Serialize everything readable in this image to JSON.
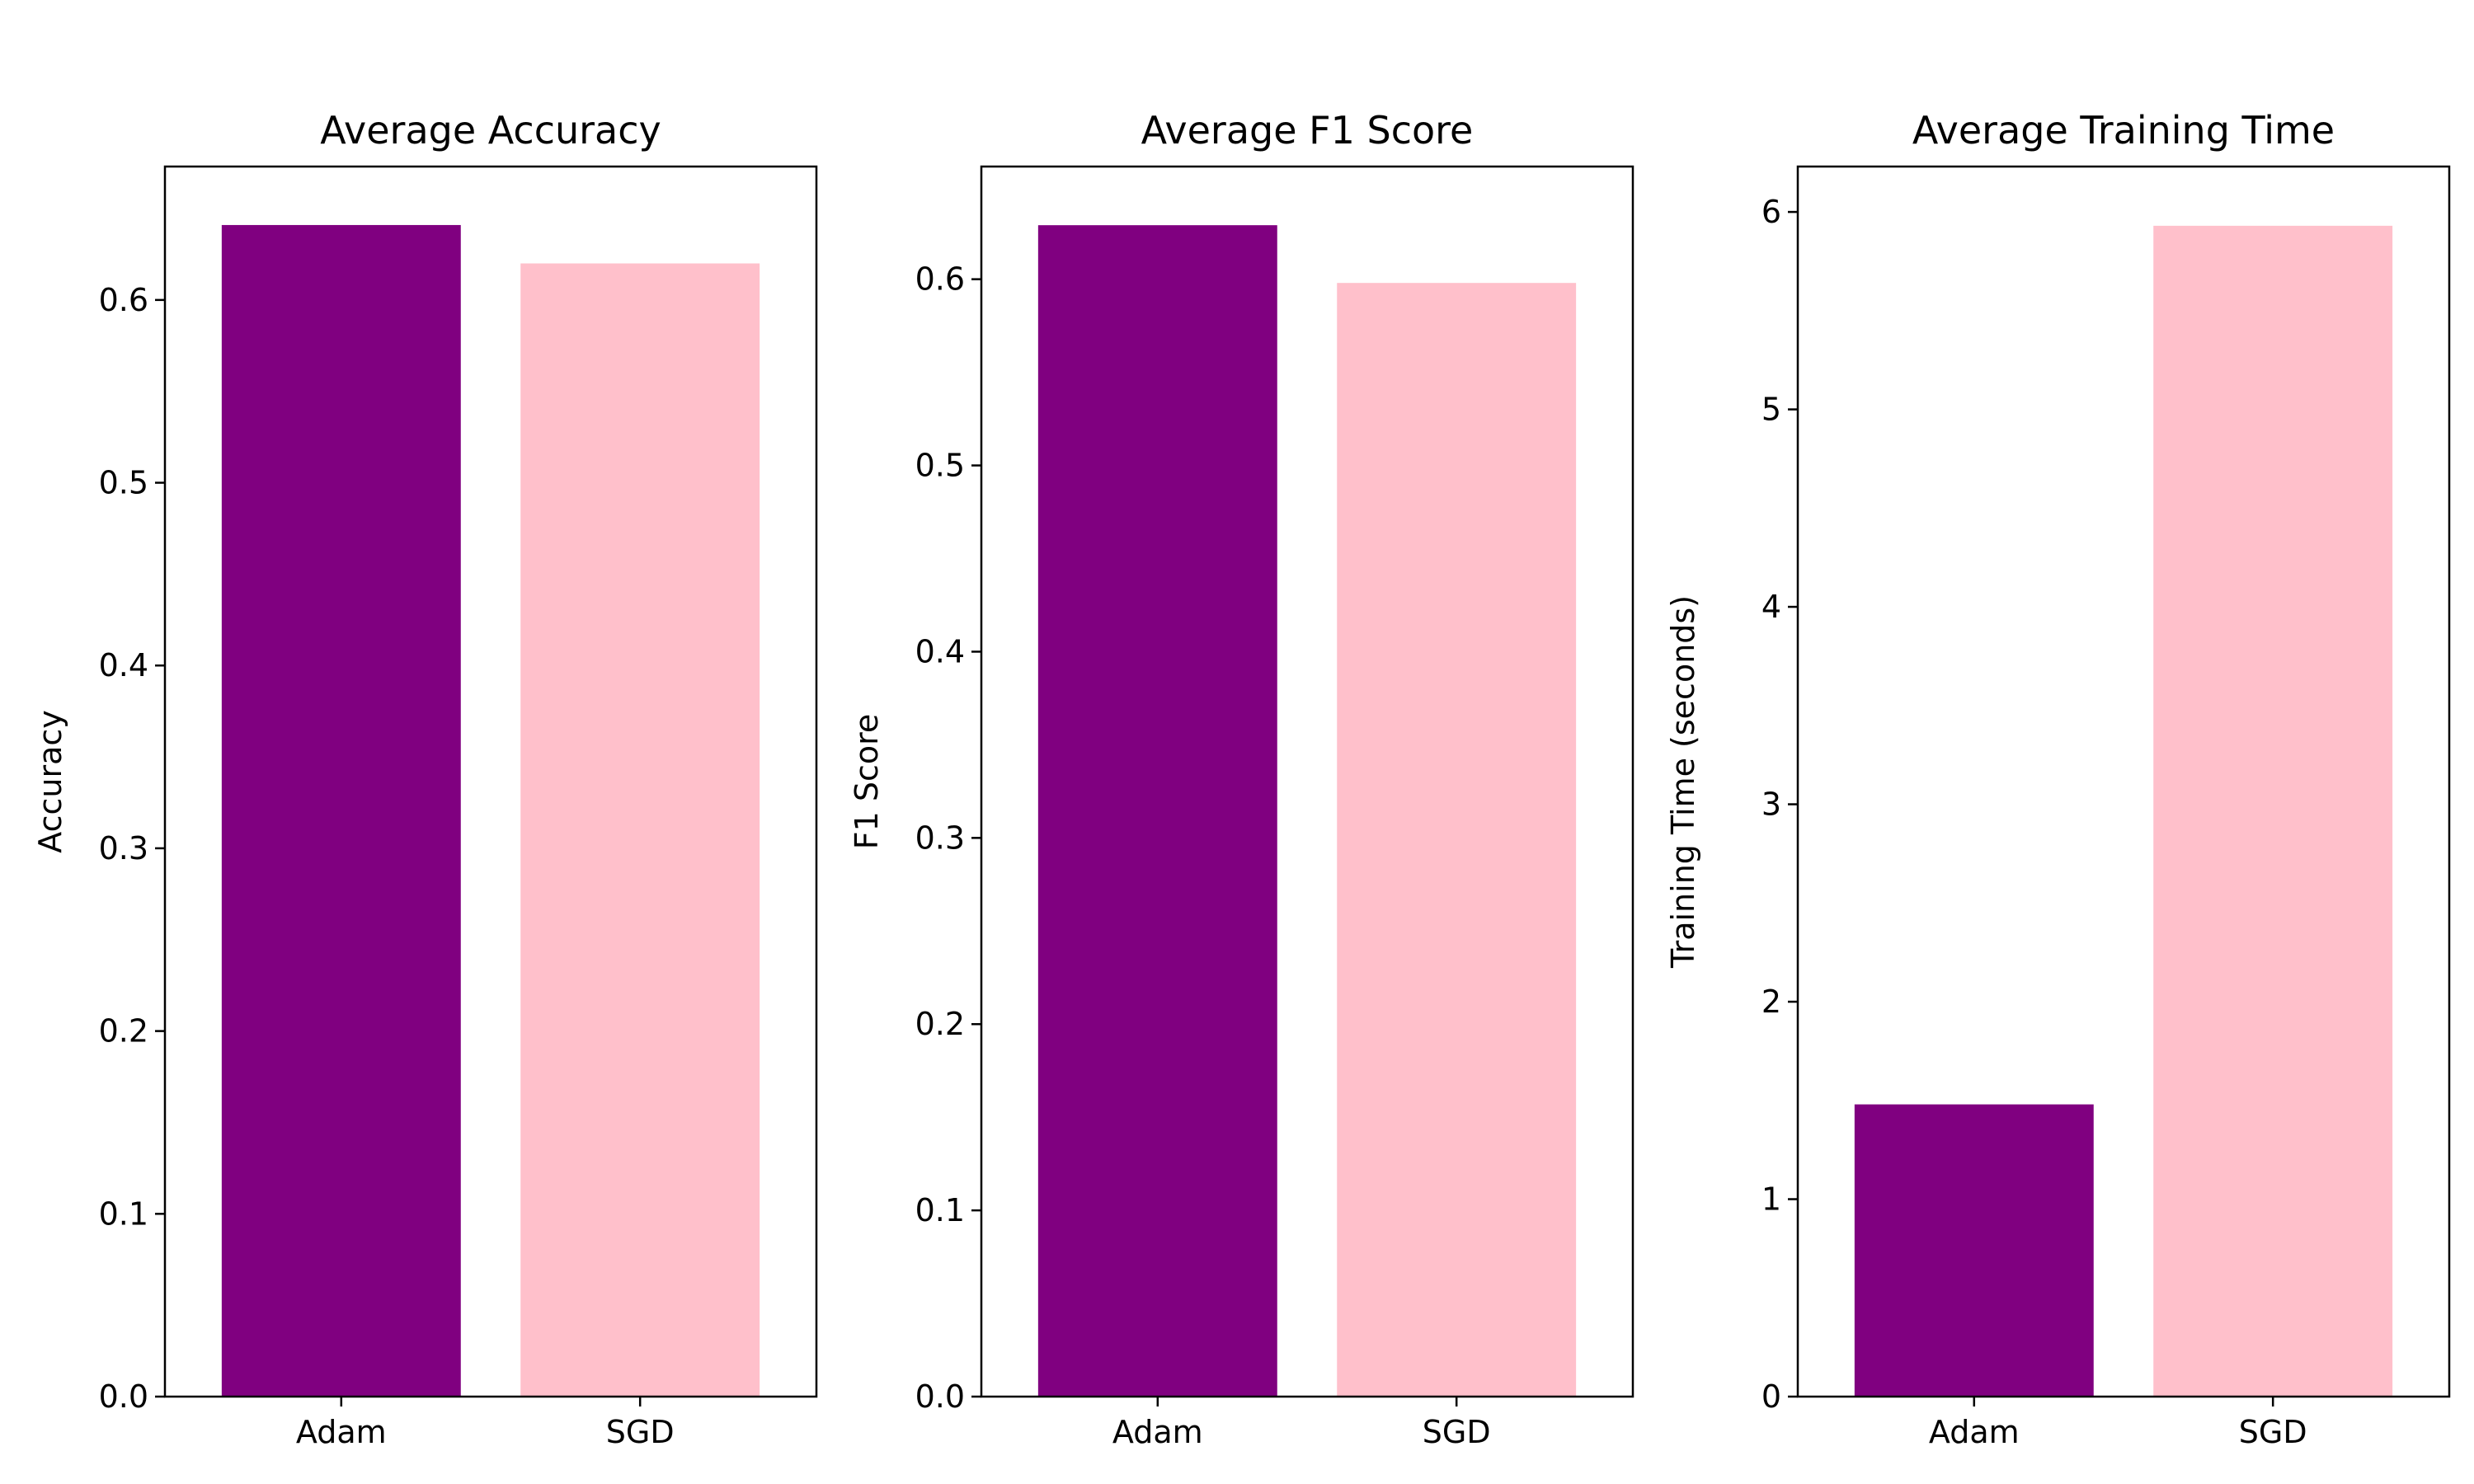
{
  "colors": {
    "Adam": "#800080",
    "SGD": "#ffc0cb"
  },
  "chart_data": [
    {
      "type": "bar",
      "title": "Average Accuracy",
      "xlabel": "",
      "ylabel": "Accuracy",
      "categories": [
        "Adam",
        "SGD"
      ],
      "values": [
        0.641,
        0.62
      ],
      "ylim": [
        0,
        0.673
      ],
      "yticks": [
        "0.0",
        "0.1",
        "0.2",
        "0.3",
        "0.4",
        "0.5",
        "0.6"
      ],
      "grid": false,
      "legend": "none"
    },
    {
      "type": "bar",
      "title": "Average F1 Score",
      "xlabel": "",
      "ylabel": "F1 Score",
      "categories": [
        "Adam",
        "SGD"
      ],
      "values": [
        0.629,
        0.598
      ],
      "ylim": [
        0,
        0.6605
      ],
      "yticks": [
        "0.0",
        "0.1",
        "0.2",
        "0.3",
        "0.4",
        "0.5",
        "0.6"
      ],
      "grid": false,
      "legend": "none"
    },
    {
      "type": "bar",
      "title": "Average Training Time",
      "xlabel": "",
      "ylabel": "Training Time (seconds)",
      "categories": [
        "Adam",
        "SGD"
      ],
      "values": [
        1.48,
        5.93
      ],
      "ylim": [
        0,
        6.23
      ],
      "yticks": [
        "0",
        "1",
        "2",
        "3",
        "4",
        "5",
        "6"
      ],
      "grid": false,
      "legend": "none"
    }
  ]
}
